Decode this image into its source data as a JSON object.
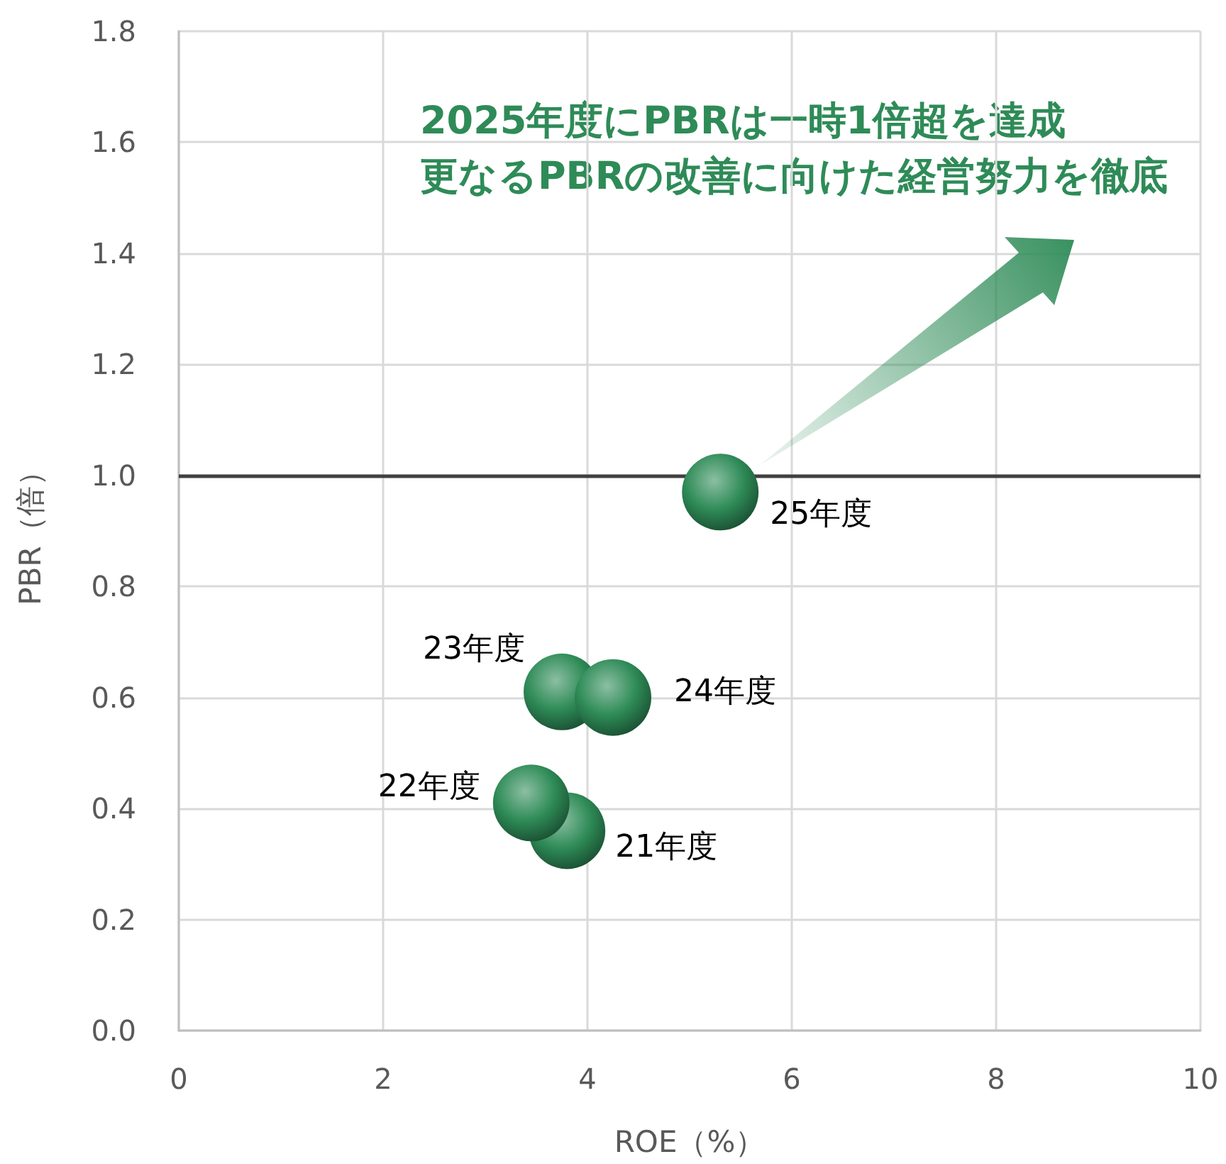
{
  "chart_data": {
    "type": "scatter",
    "xlabel": "ROE（%）",
    "ylabel": "PBR（倍）",
    "annotations": [
      "2025年度にPBRは一時1倍超を達成",
      "更なるPBRの改善に向けた経営努力を徹底",
      {
        "text": "21年度",
        "x": 3.8,
        "y": 0.36
      },
      {
        "text": "22年度",
        "x": 3.45,
        "y": 0.41
      },
      {
        "text": "23年度",
        "x": 3.75,
        "y": 0.61
      },
      {
        "text": "24年度",
        "x": 4.25,
        "y": 0.6
      },
      {
        "text": "25年度",
        "x": 5.3,
        "y": 0.97
      }
    ],
    "x": [
      3.8,
      3.45,
      3.75,
      4.25,
      5.3
    ],
    "values": [
      0.36,
      0.41,
      0.61,
      0.6,
      0.97
    ],
    "color": "#2e8b57",
    "xlim": [
      0,
      10
    ],
    "xticks": [
      0,
      2,
      4,
      6,
      8,
      10
    ],
    "ylim": [
      0,
      1.8
    ],
    "yticks": [
      {
        "value": 0,
        "label": "0.0"
      },
      0.2,
      0.4,
      0.6,
      0.8,
      {
        "value": 1,
        "label": "1.0"
      },
      1.2,
      1.4,
      1.6,
      1.8
    ],
    "grid": true,
    "marker": "circle",
    "ref_lines": [
      {
        "axis": "y",
        "value": 1,
        "color": "#404040"
      }
    ]
  }
}
